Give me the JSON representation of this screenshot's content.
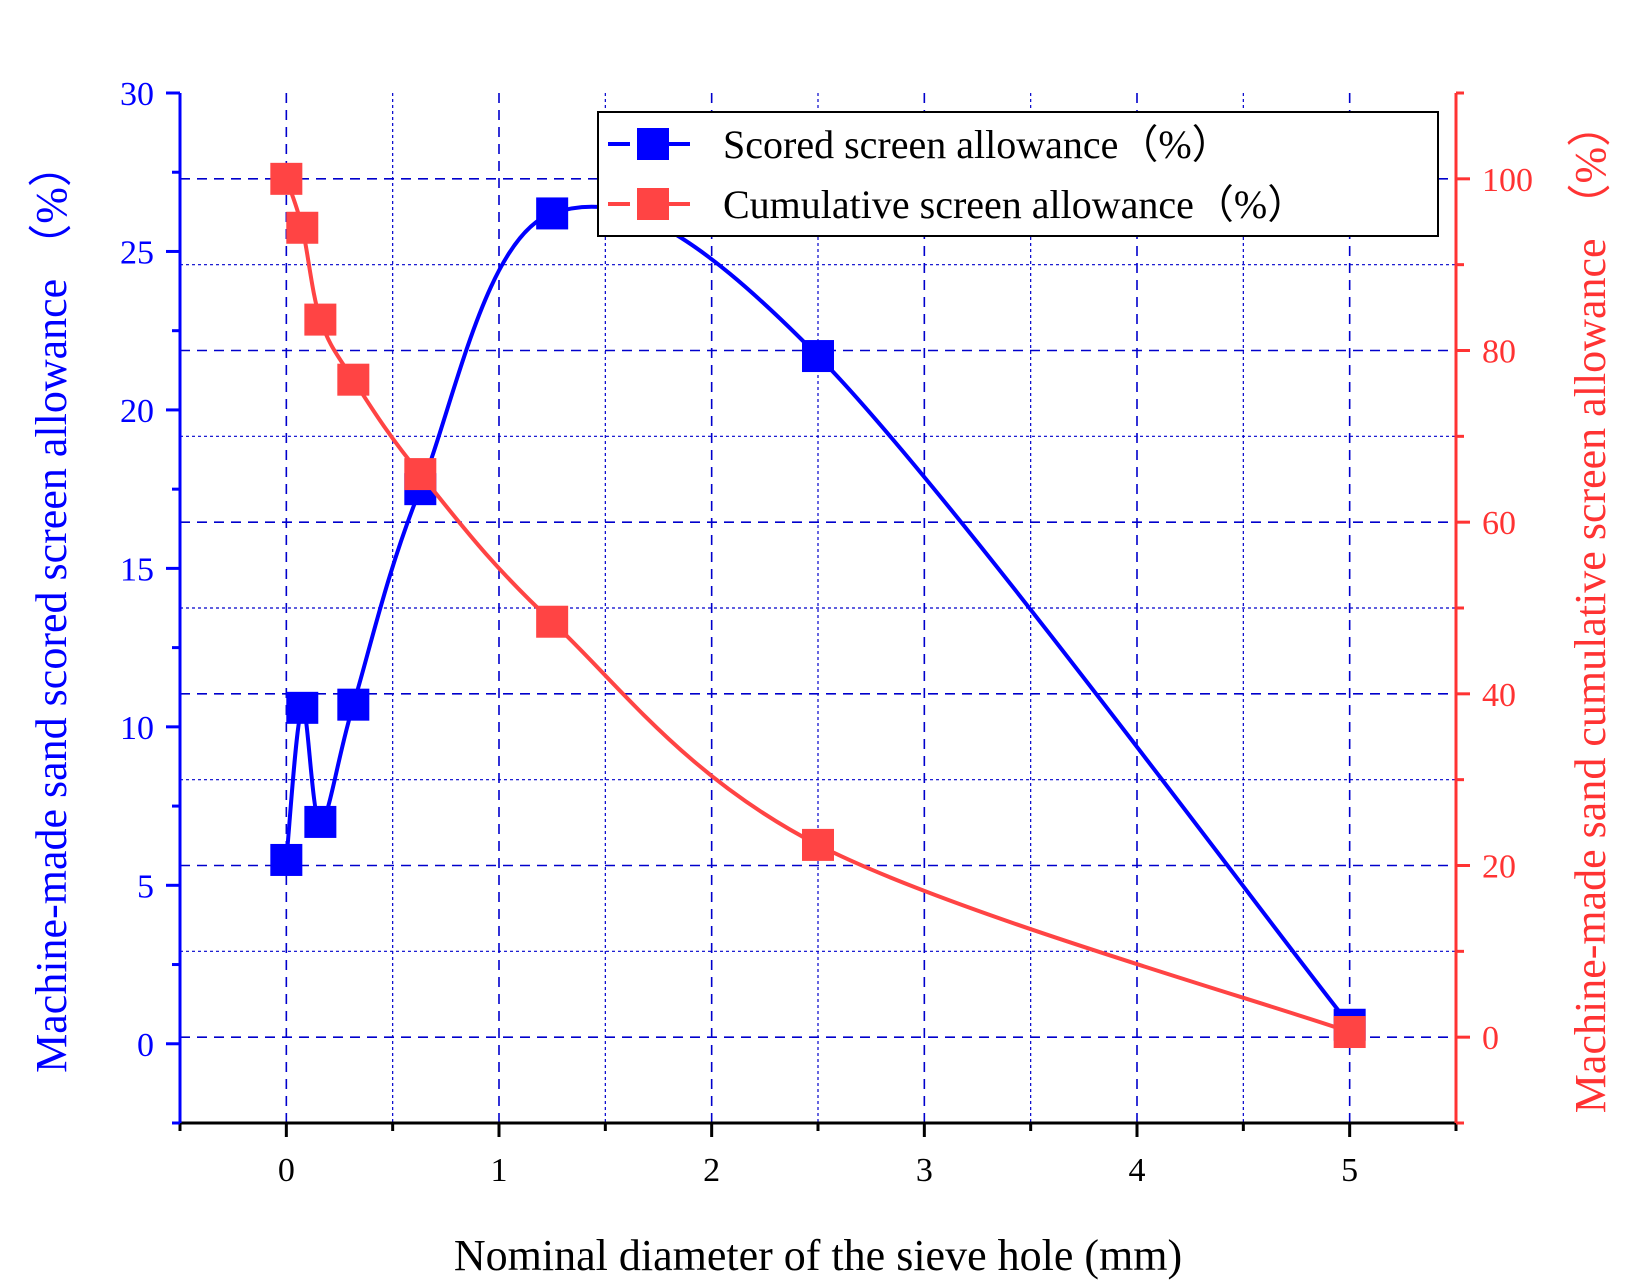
{
  "chart_data": {
    "type": "line",
    "xlabel": "Nominal diameter of the sieve hole (mm)",
    "ylabel_left": "Machine-made sand scored screen allowance （%）",
    "ylabel_right": "Machine-made sand cumulative screen allowance （%）",
    "xlim": [
      -0.5,
      5.5
    ],
    "ylim_left": [
      -2.5,
      30
    ],
    "ylim_right": [
      -10,
      110
    ],
    "x_ticks": [
      0,
      1,
      2,
      3,
      4,
      5
    ],
    "x_tick_labels": [
      "0",
      "1",
      "2",
      "3",
      "4",
      "5"
    ],
    "y_left_ticks": [
      0,
      5,
      10,
      15,
      20,
      25,
      30
    ],
    "y_left_tick_labels": [
      "0",
      "5",
      "10",
      "15",
      "20",
      "25",
      "30"
    ],
    "y_right_ticks": [
      0,
      20,
      40,
      60,
      80,
      100
    ],
    "y_right_tick_labels": [
      "0",
      "20",
      "40",
      "60",
      "80",
      "100"
    ],
    "grid": true,
    "legend_position": "top-right",
    "series": [
      {
        "name": "Scored screen allowance（%）",
        "axis": "left",
        "color": "#0000FF",
        "x": [
          0,
          0.075,
          0.16,
          0.315,
          0.63,
          1.25,
          2.5,
          5
        ],
        "values": [
          5.8,
          10.6,
          7.0,
          10.7,
          17.5,
          26.2,
          21.7,
          0.6
        ]
      },
      {
        "name": "Cumulative screen allowance（%）",
        "axis": "right",
        "color": "#FF4444",
        "x": [
          0,
          0.075,
          0.16,
          0.315,
          0.63,
          1.25,
          2.5,
          5
        ],
        "values": [
          100,
          94.3,
          83.6,
          76.6,
          65.6,
          48.4,
          22.4,
          0.6
        ]
      }
    ]
  },
  "colors": {
    "left_axis": "#0000FF",
    "right_axis": "#FF3333",
    "grid": "#0000CC",
    "marker_blue": "#0000FF",
    "marker_red": "#FF4444"
  }
}
